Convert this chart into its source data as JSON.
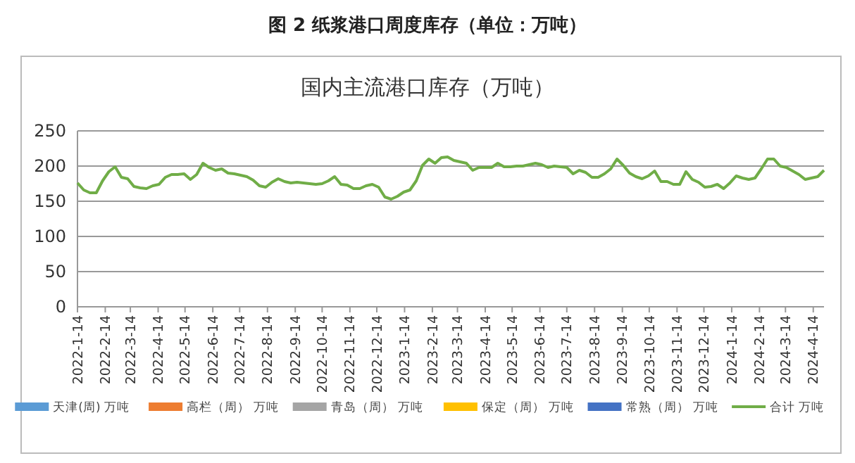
{
  "chart_data": {
    "type": "line",
    "title": "图 2  纸浆港口周度库存（单位：万吨）",
    "subtitle": "国内主流港口库存（万吨）",
    "x": [
      "2022-01-14",
      "2022-01-21",
      "2022-01-28",
      "2022-02-04",
      "2022-02-11",
      "2022-02-18",
      "2022-02-25",
      "2022-03-04",
      "2022-03-11",
      "2022-03-18",
      "2022-03-25",
      "2022-04-01",
      "2022-04-08",
      "2022-04-15",
      "2022-04-22",
      "2022-04-29",
      "2022-05-06",
      "2022-05-13",
      "2022-05-20",
      "2022-05-27",
      "2022-06-03",
      "2022-06-10",
      "2022-06-17",
      "2022-06-24",
      "2022-07-01",
      "2022-07-08",
      "2022-07-15",
      "2022-07-22",
      "2022-07-29",
      "2022-08-05",
      "2022-08-12",
      "2022-08-19",
      "2022-08-26",
      "2022-09-02",
      "2022-09-09",
      "2022-09-16",
      "2022-09-23",
      "2022-09-30",
      "2022-10-07",
      "2022-10-14",
      "2022-10-21",
      "2022-10-28",
      "2022-11-04",
      "2022-11-11",
      "2022-11-18",
      "2022-11-25",
      "2022-12-02",
      "2022-12-09",
      "2022-12-16",
      "2022-12-23",
      "2022-12-30",
      "2023-01-06",
      "2023-01-13",
      "2023-01-20",
      "2023-01-27",
      "2023-02-03",
      "2023-02-10",
      "2023-02-17",
      "2023-02-24",
      "2023-03-03",
      "2023-03-10",
      "2023-03-17",
      "2023-03-24",
      "2023-03-31",
      "2023-04-07",
      "2023-04-14",
      "2023-04-21",
      "2023-04-28",
      "2023-05-05",
      "2023-05-12",
      "2023-05-19",
      "2023-05-26",
      "2023-06-02",
      "2023-06-09",
      "2023-06-16",
      "2023-06-23",
      "2023-06-30",
      "2023-07-07",
      "2023-07-14",
      "2023-07-21",
      "2023-07-28",
      "2023-08-04",
      "2023-08-11",
      "2023-08-18",
      "2023-08-25",
      "2023-09-01",
      "2023-09-08",
      "2023-09-15",
      "2023-09-22",
      "2023-09-29",
      "2023-10-06",
      "2023-10-13",
      "2023-10-20",
      "2023-10-27",
      "2023-11-03",
      "2023-11-10",
      "2023-11-17",
      "2023-11-24",
      "2023-12-01",
      "2023-12-08",
      "2023-12-15",
      "2023-12-22",
      "2023-12-29",
      "2024-01-05",
      "2024-01-12",
      "2024-01-19",
      "2024-01-26",
      "2024-02-02",
      "2024-02-09",
      "2024-02-16",
      "2024-02-23",
      "2024-03-01",
      "2024-03-08",
      "2024-03-15",
      "2024-03-22",
      "2024-03-29",
      "2024-04-05",
      "2024-04-12",
      "2024-04-19",
      "2024-04-26"
    ],
    "series": [
      {
        "name": "天津(周) 万吨",
        "type": "bar",
        "color": "#5b9bd5",
        "values": [
          null,
          null,
          null,
          null,
          null,
          null,
          null,
          null,
          null,
          null,
          null,
          null,
          null,
          null,
          null,
          null,
          null,
          null,
          null,
          null,
          null,
          null,
          null,
          null,
          null,
          null,
          null,
          null,
          null,
          null,
          null,
          null,
          null,
          null,
          null,
          null,
          null,
          null,
          null,
          null,
          null,
          null,
          null,
          null,
          null,
          null,
          null,
          null,
          null,
          null,
          null,
          null,
          null,
          null,
          null,
          null,
          null,
          null,
          null,
          null,
          null,
          null,
          null,
          null,
          null,
          null,
          null,
          null,
          null,
          null,
          null,
          null,
          null,
          null,
          null,
          null,
          null,
          null,
          null,
          null,
          null,
          null,
          null,
          null,
          null,
          null,
          null,
          null,
          null,
          null,
          null,
          null,
          null,
          null,
          null,
          null,
          null,
          null,
          null,
          null,
          null,
          null,
          null,
          null,
          null,
          null,
          null,
          null,
          null,
          null,
          null,
          null,
          null,
          null,
          null,
          null,
          null,
          null,
          null,
          null
        ]
      },
      {
        "name": "高栏（周） 万吨",
        "type": "bar",
        "color": "#ed7d31",
        "values": [
          null,
          null,
          null,
          null,
          null,
          null,
          null,
          null,
          null,
          null,
          null,
          null,
          null,
          null,
          null,
          null,
          null,
          null,
          null,
          null,
          null,
          null,
          null,
          null,
          null,
          null,
          null,
          null,
          null,
          null,
          null,
          null,
          null,
          null,
          null,
          null,
          null,
          null,
          null,
          null,
          null,
          null,
          null,
          null,
          null,
          null,
          null,
          null,
          null,
          null,
          null,
          null,
          null,
          null,
          null,
          null,
          null,
          null,
          null,
          null,
          null,
          null,
          null,
          null,
          null,
          null,
          null,
          null,
          null,
          null,
          null,
          null,
          null,
          null,
          null,
          null,
          null,
          null,
          null,
          null,
          null,
          null,
          null,
          null,
          null,
          null,
          null,
          null,
          null,
          null,
          null,
          null,
          null,
          null,
          null,
          null,
          null,
          null,
          null,
          null,
          null,
          null,
          null,
          null,
          null,
          null,
          null,
          null,
          null,
          null,
          null,
          null,
          null,
          null,
          null,
          null,
          null,
          null,
          null,
          null
        ]
      },
      {
        "name": "青岛（周）  万吨",
        "type": "bar",
        "color": "#a5a5a5",
        "values": [
          null,
          null,
          null,
          null,
          null,
          null,
          null,
          null,
          null,
          null,
          null,
          null,
          null,
          null,
          null,
          null,
          null,
          null,
          null,
          null,
          null,
          null,
          null,
          null,
          null,
          null,
          null,
          null,
          null,
          null,
          null,
          null,
          null,
          null,
          null,
          null,
          null,
          null,
          null,
          null,
          null,
          null,
          null,
          null,
          null,
          null,
          null,
          null,
          null,
          null,
          null,
          null,
          null,
          null,
          null,
          null,
          null,
          null,
          null,
          null,
          null,
          null,
          null,
          null,
          null,
          null,
          null,
          null,
          null,
          null,
          null,
          null,
          null,
          null,
          null,
          null,
          null,
          null,
          null,
          null,
          null,
          null,
          null,
          null,
          null,
          null,
          null,
          null,
          null,
          null,
          null,
          null,
          null,
          null,
          null,
          null,
          null,
          null,
          null,
          null,
          null,
          null,
          null,
          null,
          null,
          null,
          null,
          null,
          null,
          null,
          null,
          null,
          null,
          null,
          null,
          null,
          null,
          null,
          null,
          null
        ]
      },
      {
        "name": "保定（周） 万吨",
        "type": "bar",
        "color": "#ffc000",
        "values": [
          null,
          null,
          null,
          null,
          null,
          null,
          null,
          null,
          null,
          null,
          null,
          null,
          null,
          null,
          null,
          null,
          null,
          null,
          null,
          null,
          null,
          null,
          null,
          null,
          null,
          null,
          null,
          null,
          null,
          null,
          null,
          null,
          null,
          null,
          null,
          null,
          null,
          null,
          null,
          null,
          null,
          null,
          null,
          null,
          null,
          null,
          null,
          null,
          null,
          null,
          null,
          null,
          null,
          null,
          null,
          null,
          null,
          null,
          null,
          null,
          null,
          null,
          null,
          null,
          null,
          null,
          null,
          null,
          null,
          null,
          null,
          null,
          null,
          null,
          null,
          null,
          null,
          null,
          null,
          null,
          null,
          null,
          null,
          null,
          null,
          null,
          null,
          null,
          null,
          null,
          null,
          null,
          null,
          null,
          null,
          null,
          null,
          null,
          null,
          null,
          null,
          null,
          null,
          null,
          null,
          null,
          null,
          null,
          null,
          null,
          null,
          null,
          null,
          null,
          null,
          null,
          null,
          null,
          null,
          null
        ]
      },
      {
        "name": "常熟（周） 万吨",
        "type": "bar",
        "color": "#4472c4",
        "values": [
          null,
          null,
          null,
          null,
          null,
          null,
          null,
          null,
          null,
          null,
          null,
          null,
          null,
          null,
          null,
          null,
          null,
          null,
          null,
          null,
          null,
          null,
          null,
          null,
          null,
          null,
          null,
          null,
          null,
          null,
          null,
          null,
          null,
          null,
          null,
          null,
          null,
          null,
          null,
          null,
          null,
          null,
          null,
          null,
          null,
          null,
          null,
          null,
          null,
          null,
          null,
          null,
          null,
          null,
          null,
          null,
          null,
          null,
          null,
          null,
          null,
          null,
          null,
          null,
          null,
          null,
          null,
          null,
          null,
          null,
          null,
          null,
          null,
          null,
          null,
          null,
          null,
          null,
          null,
          null,
          null,
          null,
          null,
          null,
          null,
          null,
          null,
          null,
          null,
          null,
          null,
          null,
          null,
          null,
          null,
          null,
          null,
          null,
          null,
          null,
          null,
          null,
          null,
          null,
          null,
          null,
          null,
          null,
          null,
          null,
          null,
          null,
          null,
          null,
          null,
          null,
          null,
          null,
          null,
          null
        ]
      },
      {
        "name": "合计 万吨",
        "color": "#70ad47",
        "values": [
          176,
          166,
          162,
          162,
          179,
          192,
          199,
          184,
          182,
          171,
          169,
          168,
          172,
          174,
          184,
          188,
          188,
          189,
          181,
          188,
          204,
          198,
          194,
          196,
          190,
          189,
          187,
          185,
          180,
          172,
          170,
          177,
          182,
          178,
          176,
          177,
          176,
          175,
          174,
          175,
          179,
          185,
          174,
          173,
          168,
          168,
          172,
          174,
          170,
          156,
          153,
          157,
          163,
          166,
          179,
          201,
          210,
          204,
          212,
          213,
          208,
          206,
          204,
          194,
          198,
          198,
          198,
          204,
          199,
          199,
          200,
          200,
          202,
          204,
          202,
          198,
          200,
          199,
          198,
          189,
          194,
          191,
          184,
          184,
          189,
          196,
          210,
          201,
          190,
          185,
          182,
          186,
          193,
          178,
          178,
          174,
          174,
          192,
          181,
          177,
          170,
          171,
          174,
          168,
          176,
          186,
          183,
          181,
          183,
          196,
          210,
          210,
          200,
          198,
          193,
          188,
          181,
          183,
          185,
          194
        ]
      }
    ],
    "ylim": [
      0,
      250
    ],
    "yticks": [
      0,
      50,
      100,
      150,
      200,
      250
    ],
    "xlim": [
      "2022-01-14",
      "2024-04-26"
    ],
    "xticks": [
      {
        "value": "2022-01-14",
        "label": "2022-1-14"
      },
      {
        "value": "2022-02-14",
        "label": "2022-2-14"
      },
      {
        "value": "2022-03-14",
        "label": "2022-3-14"
      },
      {
        "value": "2022-04-14",
        "label": "2022-4-14"
      },
      {
        "value": "2022-05-14",
        "label": "2022-5-14"
      },
      {
        "value": "2022-06-14",
        "label": "2022-6-14"
      },
      {
        "value": "2022-07-14",
        "label": "2022-7-14"
      },
      {
        "value": "2022-08-14",
        "label": "2022-8-14"
      },
      {
        "value": "2022-09-14",
        "label": "2022-9-14"
      },
      {
        "value": "2022-10-14",
        "label": "2022-10-14"
      },
      {
        "value": "2022-11-14",
        "label": "2022-11-14"
      },
      {
        "value": "2022-12-14",
        "label": "2022-12-14"
      },
      {
        "value": "2023-01-14",
        "label": "2023-1-14"
      },
      {
        "value": "2023-02-14",
        "label": "2023-2-14"
      },
      {
        "value": "2023-03-14",
        "label": "2023-3-14"
      },
      {
        "value": "2023-04-14",
        "label": "2023-4-14"
      },
      {
        "value": "2023-05-14",
        "label": "2023-5-14"
      },
      {
        "value": "2023-06-14",
        "label": "2023-6-14"
      },
      {
        "value": "2023-07-14",
        "label": "2023-7-14"
      },
      {
        "value": "2023-08-14",
        "label": "2023-8-14"
      },
      {
        "value": "2023-09-14",
        "label": "2023-9-14"
      },
      {
        "value": "2023-10-14",
        "label": "2023-10-14"
      },
      {
        "value": "2023-11-14",
        "label": "2023-11-14"
      },
      {
        "value": "2023-12-14",
        "label": "2023-12-14"
      },
      {
        "value": "2024-01-14",
        "label": "2024-1-14"
      },
      {
        "value": "2024-02-14",
        "label": "2024-2-14"
      },
      {
        "value": "2024-03-14",
        "label": "2024-3-14"
      },
      {
        "value": "2024-04-14",
        "label": "2024-4-14"
      }
    ],
    "grid": "y",
    "legend": "bottom",
    "marker": "none",
    "line_style": "solid"
  }
}
